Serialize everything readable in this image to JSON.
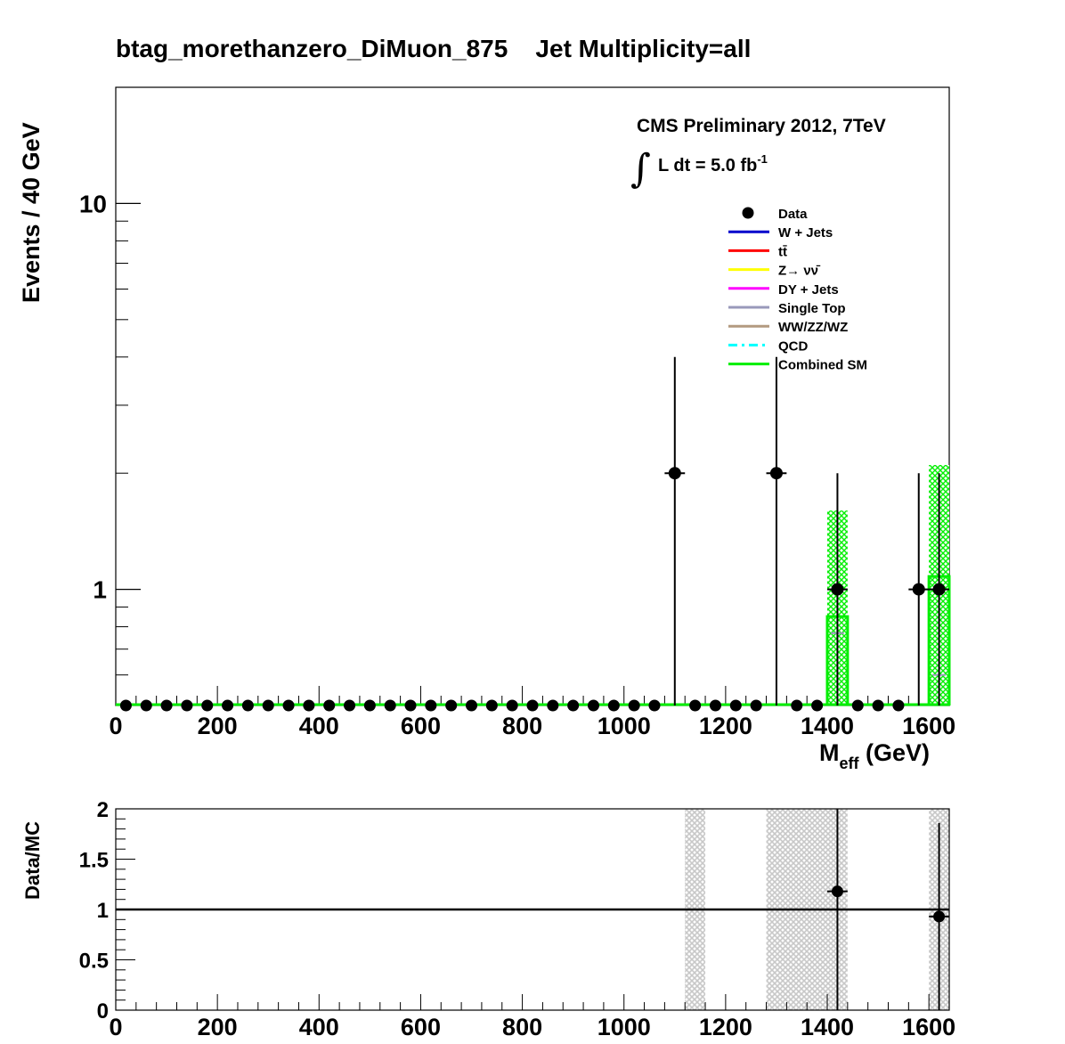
{
  "title": "btag_morethanzero_DiMuon_875    Jet Multiplicity=all",
  "cms_label": "CMS Preliminary 2012, 7TeV",
  "lumi": {
    "integral_sign": "∫",
    "prefix": "L dt = 5.0 fb",
    "superscript": "-1"
  },
  "colors": {
    "data": "#000000",
    "wjets": "#0000cc",
    "ttbar": "#ff0000",
    "zinv": "#ffff00",
    "dyjets": "#ff00ff",
    "singletop": "#9999bb",
    "diboson": "#b39a80",
    "qcd": "#00ffff",
    "combined": "#00ee00",
    "ratio_band": "#c8c8c8"
  },
  "chart_data": [
    {
      "type": "line",
      "name": "main",
      "xlabel_main": "M",
      "xlabel_sub": "eff",
      "xlabel_unit": " (GeV)",
      "ylabel": "Events / 40 GeV",
      "xlim": [
        0,
        1640
      ],
      "ylim": [
        0.5,
        20
      ],
      "log_y": true,
      "bin_width": 40,
      "x_ticks": [
        0,
        200,
        400,
        600,
        800,
        1000,
        1200,
        1400,
        1600
      ],
      "y_tick_labels": [
        {
          "value": 1,
          "label": "1"
        },
        {
          "value": 10,
          "label": "10"
        }
      ],
      "legend_position": "top-right",
      "legend": [
        {
          "label": "Data",
          "style": "marker",
          "color_key": "data"
        },
        {
          "label": "W + Jets",
          "style": "line",
          "color_key": "wjets"
        },
        {
          "label": "tt̄",
          "style": "line",
          "color_key": "ttbar"
        },
        {
          "label": "Z→ νν̄",
          "style": "line",
          "color_key": "zinv"
        },
        {
          "label": "DY + Jets",
          "style": "line",
          "color_key": "dyjets"
        },
        {
          "label": "Single Top",
          "style": "line",
          "color_key": "singletop"
        },
        {
          "label": "WW/ZZ/WZ",
          "style": "line",
          "color_key": "diboson"
        },
        {
          "label": "QCD",
          "style": "dash",
          "color_key": "qcd"
        },
        {
          "label": "Combined SM",
          "style": "line",
          "color_key": "combined"
        }
      ],
      "data_points": [
        {
          "x": 1100,
          "y": 2,
          "err_up": 4.0
        },
        {
          "x": 1300,
          "y": 2,
          "err_up": 4.0
        },
        {
          "x": 1420,
          "y": 1,
          "err_up": 2.0
        },
        {
          "x": 1580,
          "y": 1,
          "err_up": 2.0
        },
        {
          "x": 1620,
          "y": 1,
          "err_up": 2.0
        }
      ],
      "zero_data_bins_x": [
        20,
        60,
        100,
        140,
        180,
        220,
        260,
        300,
        340,
        380,
        420,
        460,
        500,
        540,
        580,
        620,
        660,
        700,
        740,
        780,
        820,
        860,
        900,
        940,
        980,
        1020,
        1060,
        1140,
        1180,
        1220,
        1260,
        1340,
        1380,
        1460,
        1500,
        1540
      ],
      "combined_sm": [
        {
          "x_low": 1400,
          "x_high": 1440,
          "value": 0.85,
          "err_low": 0.5,
          "err_high": 1.6
        },
        {
          "x_low": 1600,
          "x_high": 1640,
          "value": 1.08,
          "err_low": 0.5,
          "err_high": 2.1
        }
      ],
      "component_marks": [
        {
          "series": "singletop",
          "x_low": 1400,
          "x_high": 1440,
          "value": 0.77
        },
        {
          "series": "singletop",
          "x_low": 1600,
          "x_high": 1640,
          "value": 0.6
        }
      ]
    },
    {
      "type": "scatter",
      "name": "ratio",
      "ylabel": "Data/MC",
      "xlim": [
        0,
        1640
      ],
      "ylim": [
        0,
        2
      ],
      "x_ticks": [
        0,
        200,
        400,
        600,
        800,
        1000,
        1200,
        1400,
        1600
      ],
      "y_ticks": [
        {
          "value": 0,
          "label": "0"
        },
        {
          "value": 0.5,
          "label": "0.5"
        },
        {
          "value": 1,
          "label": "1"
        },
        {
          "value": 1.5,
          "label": "1.5"
        },
        {
          "value": 2,
          "label": "2"
        }
      ],
      "reference_line": 1,
      "uncertainty_bands": [
        {
          "x_low": 1120,
          "x_high": 1160,
          "y_low": 0,
          "y_high": 2
        },
        {
          "x_low": 1280,
          "x_high": 1440,
          "y_low": 0,
          "y_high": 2
        },
        {
          "x_low": 1600,
          "x_high": 1640,
          "y_low": 0,
          "y_high": 2
        }
      ],
      "points": [
        {
          "x": 1420,
          "y": 1.18,
          "err": 1.18
        },
        {
          "x": 1620,
          "y": 0.93,
          "err": 0.93
        }
      ]
    }
  ]
}
